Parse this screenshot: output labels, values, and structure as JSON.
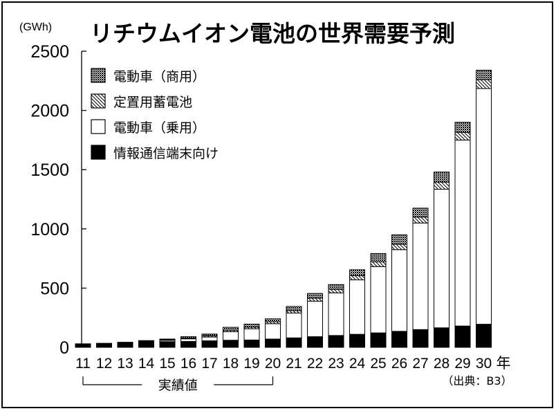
{
  "chart_data": {
    "type": "bar",
    "stacked": true,
    "title": "リチウムイオン電池の世界需要予測",
    "ylabel": "(GWh)",
    "xlabel_suffix": "年",
    "ylim": [
      0,
      2500
    ],
    "yticks": [
      "0",
      "500",
      "1000",
      "1500",
      "2000",
      "2500"
    ],
    "categories": [
      "11",
      "12",
      "13",
      "14",
      "15",
      "16",
      "17",
      "18",
      "19",
      "20",
      "21",
      "22",
      "23",
      "24",
      "25",
      "26",
      "27",
      "28",
      "29",
      "30"
    ],
    "series": [
      {
        "name": "情報通信端末向け",
        "color": "#000000",
        "pattern": "solid",
        "values": [
          30,
          33,
          38,
          45,
          48,
          50,
          55,
          60,
          62,
          70,
          80,
          90,
          100,
          110,
          122,
          135,
          150,
          165,
          180,
          195
        ]
      },
      {
        "name": "電動車(乗用)",
        "color": "#ffffff",
        "pattern": "blank",
        "values": [
          0,
          0,
          3,
          8,
          12,
          22,
          32,
          72,
          95,
          130,
          210,
          300,
          360,
          460,
          560,
          690,
          900,
          1170,
          1570,
          1990
        ]
      },
      {
        "name": "定置用蓄電池",
        "color": "#ffffff",
        "pattern": "hatch",
        "values": [
          0,
          0,
          0,
          1,
          4,
          6,
          10,
          12,
          14,
          16,
          20,
          25,
          30,
          35,
          40,
          45,
          50,
          60,
          65,
          75
        ]
      },
      {
        "name": "電動車(商用)",
        "color": "#888888",
        "pattern": "dotted",
        "values": [
          0,
          1,
          2,
          3,
          6,
          12,
          15,
          25,
          25,
          25,
          35,
          40,
          40,
          50,
          70,
          80,
          75,
          85,
          85,
          80
        ]
      }
    ],
    "legend_order": [
      3,
      2,
      1,
      0
    ],
    "legend_labels": [
      "電動車（商用）",
      "定置用蓄電池",
      "電動車（乗用）",
      "情報通信端末向け"
    ],
    "legend_position": "top-left",
    "actual_range_label": "実績値",
    "actual_range": [
      "11",
      "20"
    ],
    "source": "（出典：B3）",
    "grid": false
  }
}
